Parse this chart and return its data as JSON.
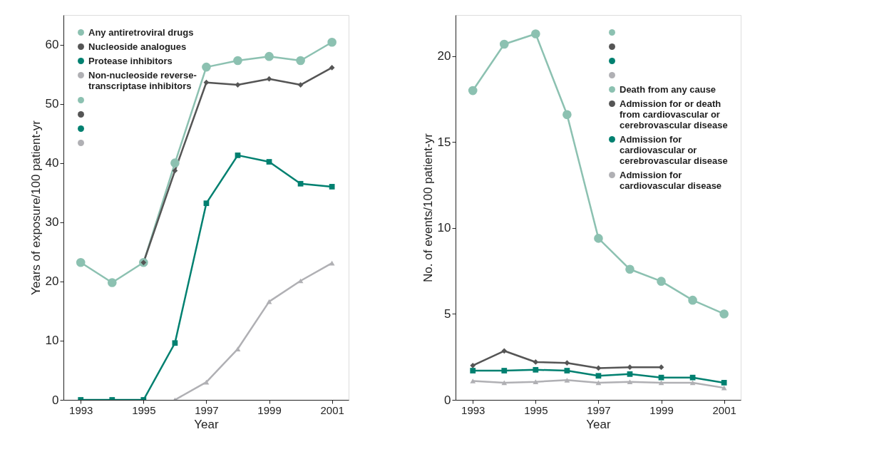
{
  "chart_data": [
    {
      "type": "line",
      "xlabel": "Year",
      "ylabel": "Years of exposure/100 patient-yr",
      "x": [
        1993,
        1994,
        1995,
        1996,
        1997,
        1998,
        1999,
        2000,
        2001
      ],
      "xlim": [
        1992.45,
        2001.53
      ],
      "xticks": [
        1993,
        1995,
        1997,
        1999,
        2001
      ],
      "ylim": [
        0,
        65
      ],
      "yticks": [
        0,
        10,
        20,
        30,
        40,
        50,
        60
      ],
      "grid": false,
      "legend": "top left",
      "series": [
        {
          "name": "Any antiretroviral drugs",
          "color": "#8cc1b1",
          "marker": "circle",
          "values": [
            23.2,
            19.8,
            23.2,
            40.0,
            56.2,
            57.3,
            58.0,
            57.3,
            60.4
          ]
        },
        {
          "name": "Nucleoside analogues",
          "color": "#555555",
          "marker": "diamond",
          "values": [
            null,
            null,
            23.2,
            38.7,
            53.6,
            53.2,
            54.2,
            53.2,
            56.1
          ]
        },
        {
          "name": "Protease inhibitors",
          "color": "#008070",
          "marker": "square",
          "values": [
            0,
            0,
            0,
            9.6,
            33.2,
            41.3,
            40.2,
            36.5,
            36.0
          ]
        },
        {
          "name": "Non-nucleoside reverse-transcriptase inhibitors",
          "color": "#b0b0b4",
          "marker": "triangle",
          "values": [
            null,
            null,
            null,
            0,
            3.0,
            8.6,
            16.6,
            20.1,
            23.1
          ]
        }
      ]
    },
    {
      "type": "line",
      "xlabel": "Year",
      "ylabel": "No. of events/100 patient-yr",
      "x": [
        1993,
        1994,
        1995,
        1996,
        1997,
        1998,
        1999,
        2000,
        2001
      ],
      "xlim": [
        1992.45,
        2001.53
      ],
      "xticks": [
        1993,
        1995,
        1997,
        1999,
        2001
      ],
      "ylim": [
        0,
        22.4
      ],
      "yticks": [
        0,
        5,
        10,
        15,
        20
      ],
      "grid": false,
      "legend": "top right",
      "series": [
        {
          "name": "Death from any cause",
          "color": "#8cc1b1",
          "marker": "circle",
          "values": [
            18.0,
            20.7,
            21.3,
            16.6,
            9.4,
            7.6,
            6.9,
            5.8,
            5.0
          ]
        },
        {
          "name": "Admission for or death from cardiovascular or cerebrovascular disease",
          "color": "#555555",
          "marker": "diamond",
          "values": [
            2.0,
            2.85,
            2.2,
            2.15,
            1.85,
            1.9,
            1.9,
            null,
            null
          ]
        },
        {
          "name": "Admission for cardiovascular or cerebrovascular disease",
          "color": "#008070",
          "marker": "square",
          "values": [
            1.7,
            1.7,
            1.75,
            1.7,
            1.4,
            1.5,
            1.3,
            1.3,
            1.0
          ]
        },
        {
          "name": "Admission for cardiovascular disease",
          "color": "#b0b0b4",
          "marker": "triangle",
          "values": [
            1.1,
            1.0,
            1.05,
            1.15,
            1.0,
            1.05,
            1.0,
            1.0,
            0.7
          ]
        }
      ]
    }
  ]
}
